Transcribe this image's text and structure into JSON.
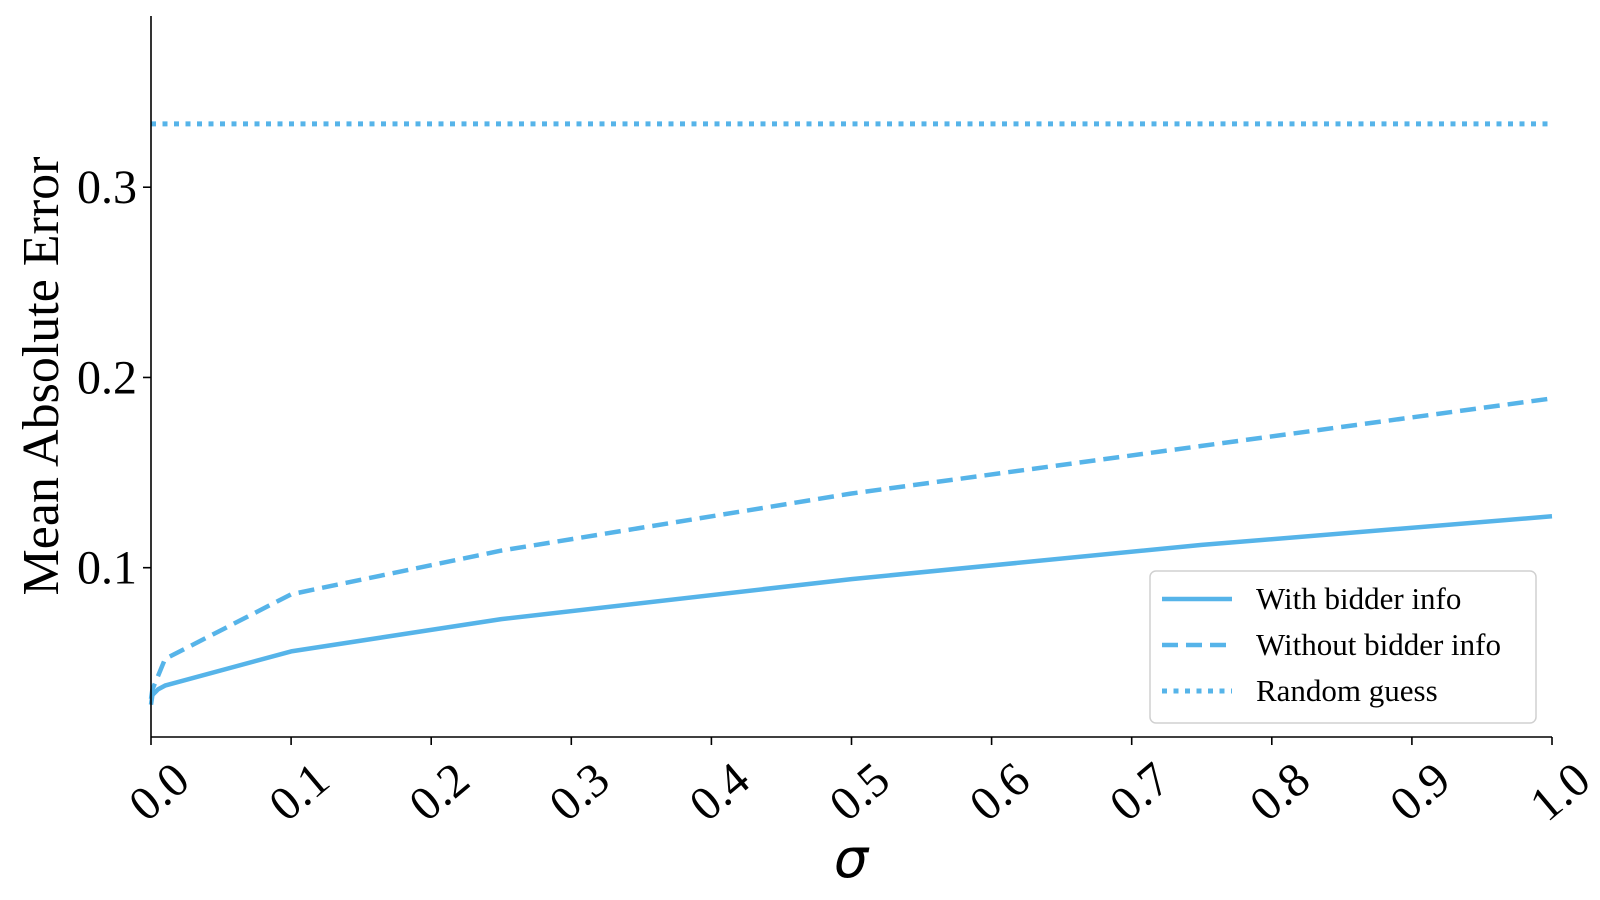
{
  "chart_data": {
    "type": "line",
    "xlabel": "σ",
    "ylabel": "Mean Absolute Error",
    "xlim": [
      0.0,
      1.0
    ],
    "ylim": [
      0.011,
      0.39
    ],
    "x_ticks": [
      "0.0",
      "0.1",
      "0.2",
      "0.3",
      "0.4",
      "0.5",
      "0.6",
      "0.7",
      "0.8",
      "0.9",
      "1.0"
    ],
    "y_ticks": [
      "0.1",
      "0.2",
      "0.3"
    ],
    "grid": false,
    "legend_position": "bottom-right",
    "color": "#56b4e9",
    "series": [
      {
        "name": "With bidder info",
        "style": "solid",
        "x": [
          0.0,
          0.001,
          0.005,
          0.01,
          0.1,
          0.25,
          0.5,
          0.75,
          1.0
        ],
        "y": [
          0.028,
          0.033,
          0.036,
          0.038,
          0.056,
          0.073,
          0.094,
          0.112,
          0.127
        ]
      },
      {
        "name": "Without bidder info",
        "style": "dashed",
        "x": [
          0.0,
          0.001,
          0.005,
          0.01,
          0.1,
          0.25,
          0.5,
          0.75,
          1.0
        ],
        "y": [
          0.031,
          0.036,
          0.043,
          0.052,
          0.086,
          0.109,
          0.139,
          0.164,
          0.189
        ]
      },
      {
        "name": "Random guess",
        "style": "dotted",
        "x": [
          0.0,
          1.0
        ],
        "y": [
          0.3333,
          0.3333
        ]
      }
    ]
  }
}
